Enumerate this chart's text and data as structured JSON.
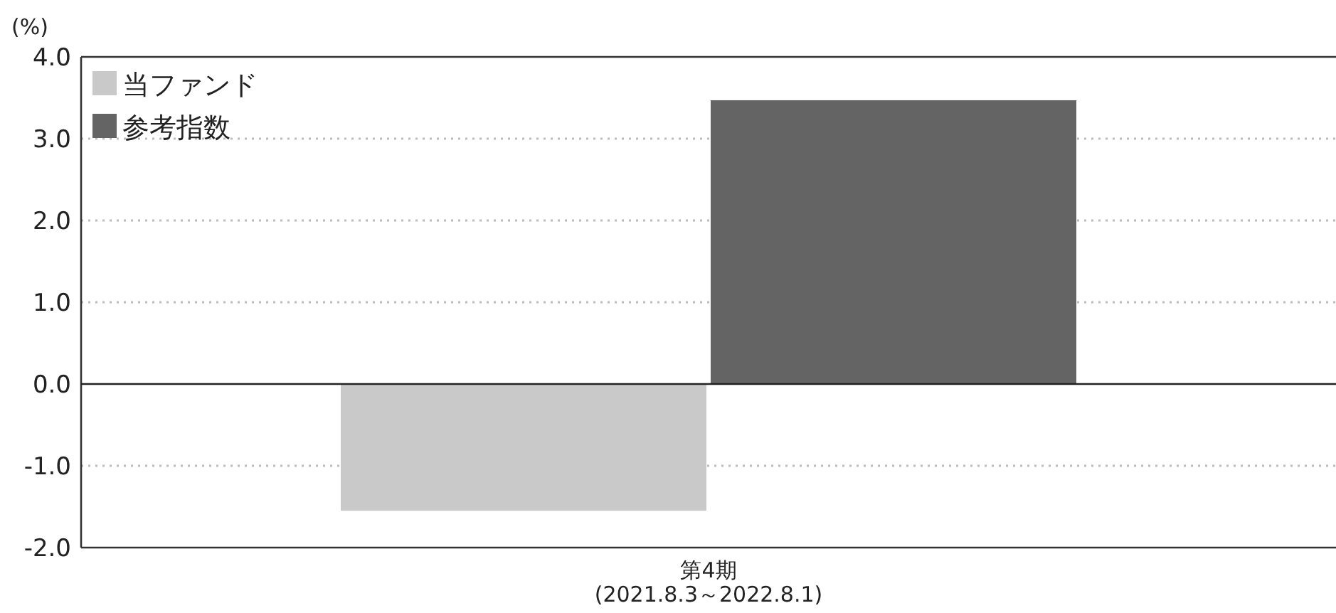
{
  "chart_data": {
    "type": "bar",
    "ylabel": "(%)",
    "categories": [
      "第4期\n(2021.8.3～2022.8.1)"
    ],
    "series": [
      {
        "name": "当ファンド",
        "color": "#c8c9c8",
        "values": [
          -1.55
        ]
      },
      {
        "name": "参考指数",
        "color": "#646464",
        "values": [
          3.47
        ]
      }
    ],
    "ylim": [
      -2.0,
      4.0
    ],
    "yticks": [
      {
        "value": -2,
        "label": "-2.0"
      },
      {
        "value": -1,
        "label": "-1.0"
      },
      {
        "value": 0,
        "label": "0.0"
      },
      {
        "value": 1,
        "label": "1.0"
      },
      {
        "value": 2,
        "label": "2.0"
      },
      {
        "value": 3,
        "label": "3.0"
      },
      {
        "value": 4,
        "label": "4.0"
      }
    ],
    "grid": "y",
    "legend": "top left"
  }
}
